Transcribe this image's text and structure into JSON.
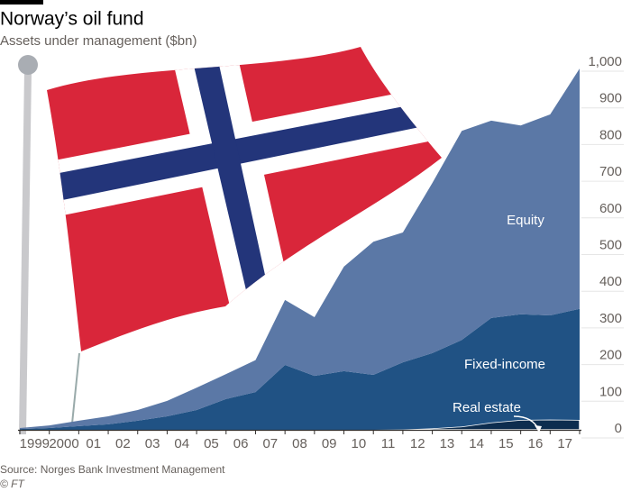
{
  "chart_data": {
    "type": "stacked-area",
    "title": "Norway’s oil fund",
    "subtitle": "Assets under management ($bn)",
    "source": "Source: Norges Bank Investment Management",
    "credit": "© FT",
    "categories": [
      null,
      "1999",
      "2000",
      "01",
      "02",
      "03",
      "04",
      "05",
      "06",
      "07",
      "08",
      "09",
      "10",
      "11",
      "12",
      "13",
      "14",
      "15",
      "16",
      "17"
    ],
    "series": [
      {
        "name": "Real estate",
        "color": "#0d2d4f",
        "values": [
          0,
          0,
          0,
          0,
          0,
          0,
          0,
          0,
          0,
          0,
          0,
          0,
          0,
          1,
          4,
          9,
          20,
          27,
          28,
          27
        ]
      },
      {
        "name": "Fixed-income",
        "color": "#205284",
        "values": [
          2,
          5,
          10,
          15,
          25,
          37,
          54,
          84,
          103,
          177,
          147,
          160,
          150,
          183,
          205,
          236,
          285,
          288,
          284,
          303
        ]
      },
      {
        "name": "Equity",
        "color": "#5b78a6",
        "values": [
          3,
          7,
          15,
          22,
          29,
          42,
          61,
          68,
          87,
          177,
          160,
          285,
          363,
          354,
          464,
          570,
          538,
          515,
          548,
          655
        ]
      }
    ],
    "ylim": [
      0,
      1000
    ],
    "yticks": [
      0,
      100,
      200,
      300,
      400,
      500,
      600,
      700,
      800,
      900,
      {
        "value": 1000,
        "label": "1,000"
      }
    ]
  }
}
